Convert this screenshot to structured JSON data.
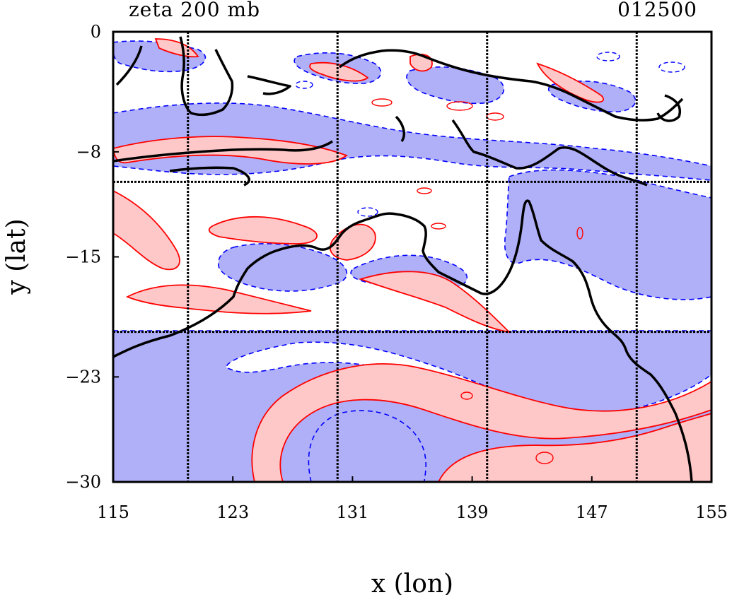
{
  "chart_data": {
    "type": "contour",
    "title": "zeta 200 mb",
    "subtitle": "012500",
    "xlabel": "x (lon)",
    "ylabel": "y (lat)",
    "xlim": [
      115,
      155
    ],
    "ylim": [
      -30,
      0
    ],
    "x_ticks": [
      115,
      123,
      131,
      139,
      147,
      155
    ],
    "y_ticks": [
      0,
      -8,
      -15,
      -23,
      -30
    ],
    "gridlines_x": [
      120,
      130,
      140,
      150
    ],
    "gridlines_y": [
      -10,
      -20
    ],
    "grid": true,
    "fill_colors": {
      "positive": "#ffc8c8",
      "negative": "#b0b0f8"
    },
    "line_colors": {
      "positive": "#ff0000",
      "negative": "#0000ff",
      "coastline": "#000000"
    }
  }
}
